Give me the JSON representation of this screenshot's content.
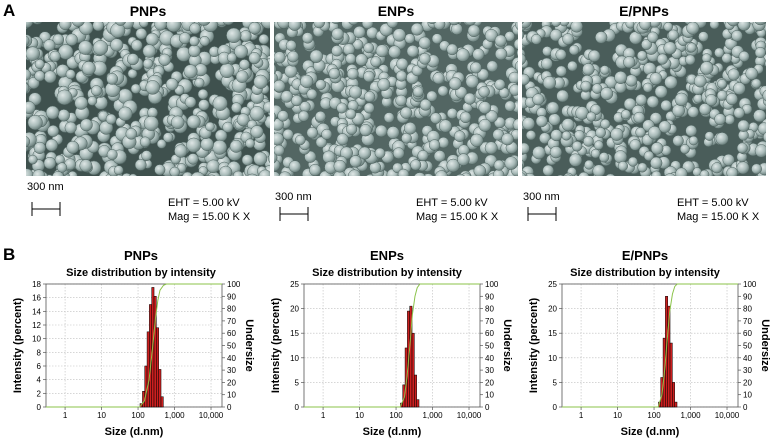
{
  "panel_a": {
    "letter": "A",
    "images": [
      {
        "title": "PNPs",
        "scale_bar": "300 nm",
        "eht": "EHT = 5.00 kV",
        "mag": "Mag = 15.00 K X"
      },
      {
        "title": "ENPs",
        "scale_bar": "300 nm",
        "eht": "EHT = 5.00 kV",
        "mag": "Mag = 15.00 K X"
      },
      {
        "title": "E/PNPs",
        "scale_bar": "300 nm",
        "eht": "EHT = 5.00 kV",
        "mag": "Mag = 15.00 K X"
      }
    ]
  },
  "panel_b": {
    "letter": "B"
  },
  "chart_data": [
    {
      "type": "bar",
      "title": "PNPs",
      "subtitle": "Size distribution by intensity",
      "xlabel": "Size (d.nm)",
      "ylabel": "Intensity (percent)",
      "y2label": "Undersize",
      "x_scale": "log",
      "xlim": [
        0.3,
        20000
      ],
      "ylim": [
        0,
        18
      ],
      "y_ticks": [
        0,
        2,
        4,
        6,
        8,
        10,
        12,
        14,
        16,
        18
      ],
      "y2lim": [
        0,
        100
      ],
      "y2_ticks": [
        0,
        10,
        20,
        30,
        40,
        50,
        60,
        70,
        80,
        90,
        100
      ],
      "x_ticks": [
        1,
        10,
        100,
        1000,
        10000
      ],
      "x_tick_labels": [
        "1",
        "10",
        "100",
        "1,000",
        "10,000"
      ],
      "grid": true,
      "bar_color": "#cc1f1f",
      "curve_color": "#8bc34a",
      "x": [
        122,
        142,
        164,
        190,
        220,
        255,
        295,
        342,
        396,
        459
      ],
      "values": [
        0.5,
        2.3,
        6.0,
        11.0,
        15.0,
        17.5,
        16.2,
        11.6,
        5.5,
        1.5
      ],
      "undersize": {
        "x": [
          0.3,
          110,
          150,
          200,
          250,
          300,
          350,
          400,
          500,
          600,
          20000
        ],
        "y": [
          0,
          0,
          5,
          22,
          48,
          72,
          87,
          95,
          99,
          100,
          100
        ]
      }
    },
    {
      "type": "bar",
      "title": "ENPs",
      "subtitle": "Size distribution by intensity",
      "xlabel": "Size (d.nm)",
      "ylabel": "Intensity (percent)",
      "y2label": "Undersize",
      "x_scale": "log",
      "xlim": [
        0.3,
        20000
      ],
      "ylim": [
        0,
        25
      ],
      "y_ticks": [
        0,
        5,
        10,
        15,
        20,
        25
      ],
      "y2lim": [
        0,
        100
      ],
      "y2_ticks": [
        0,
        10,
        20,
        30,
        40,
        50,
        60,
        70,
        80,
        90,
        100
      ],
      "x_ticks": [
        1,
        10,
        100,
        1000,
        10000
      ],
      "x_tick_labels": [
        "1",
        "10",
        "100",
        "1,000",
        "10,000"
      ],
      "grid": true,
      "bar_color": "#cc1f1f",
      "curve_color": "#8bc34a",
      "x": [
        142,
        164,
        190,
        220,
        255,
        295,
        342,
        396
      ],
      "values": [
        0.8,
        4.5,
        12.0,
        19.5,
        20.5,
        15.0,
        6.5,
        1.5
      ],
      "undersize": {
        "x": [
          0.3,
          130,
          170,
          200,
          240,
          280,
          330,
          380,
          450,
          20000
        ],
        "y": [
          0,
          0,
          8,
          25,
          50,
          75,
          90,
          97,
          100,
          100
        ]
      }
    },
    {
      "type": "bar",
      "title": "E/PNPs",
      "subtitle": "Size distribution by intensity",
      "xlabel": "Size (d.nm)",
      "ylabel": "Intensity (percent)",
      "y2label": "Undersize",
      "x_scale": "log",
      "xlim": [
        0.3,
        20000
      ],
      "ylim": [
        0,
        25
      ],
      "y_ticks": [
        0,
        5,
        10,
        15,
        20,
        25
      ],
      "y2lim": [
        0,
        100
      ],
      "y2_ticks": [
        0,
        10,
        20,
        30,
        40,
        50,
        60,
        70,
        80,
        90,
        100
      ],
      "x_ticks": [
        1,
        10,
        100,
        1000,
        10000
      ],
      "x_tick_labels": [
        "1",
        "10",
        "100",
        "1,000",
        "10,000"
      ],
      "grid": true,
      "bar_color": "#cc1f1f",
      "curve_color": "#8bc34a",
      "x": [
        142,
        164,
        190,
        220,
        255,
        295,
        342,
        396
      ],
      "values": [
        1.0,
        6.0,
        14.0,
        22.5,
        20.5,
        13.0,
        5.0,
        1.0
      ],
      "undersize": {
        "x": [
          0.3,
          130,
          165,
          195,
          230,
          270,
          320,
          370,
          430,
          20000
        ],
        "y": [
          0,
          0,
          10,
          30,
          55,
          78,
          92,
          98,
          100,
          100
        ]
      }
    }
  ]
}
